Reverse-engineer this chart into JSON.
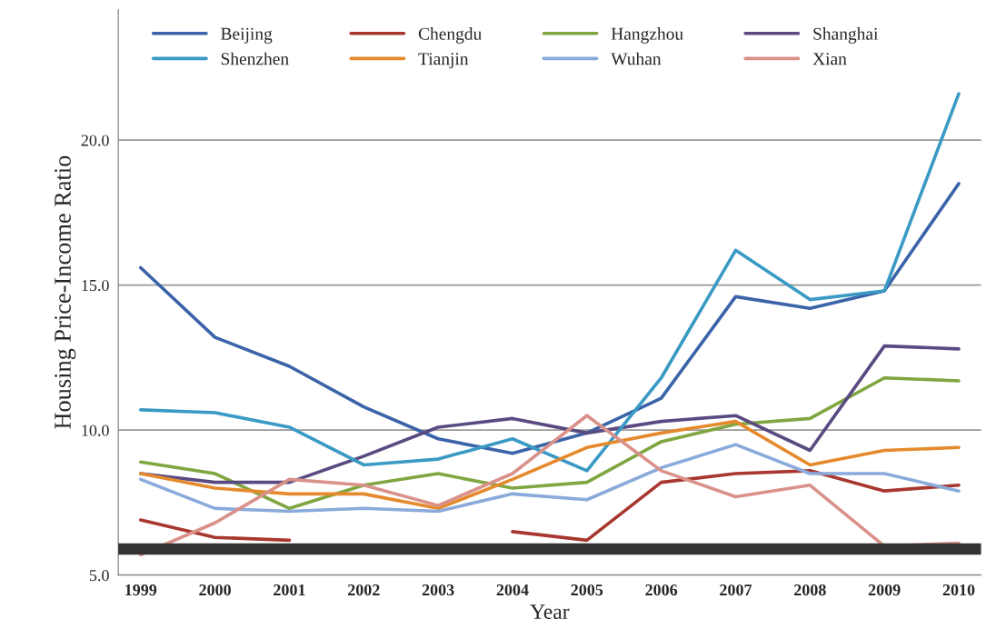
{
  "chart_data": {
    "type": "line",
    "xlabel": "Year",
    "ylabel": "Housing Price-Income Ratio",
    "categories": [
      "1999",
      "2000",
      "2001",
      "2002",
      "2003",
      "2004",
      "2005",
      "2006",
      "2007",
      "2008",
      "2009",
      "2010"
    ],
    "series": [
      {
        "name": "Beijing",
        "color": "#3a63a8",
        "values": [
          15.6,
          13.2,
          12.2,
          10.8,
          9.7,
          9.2,
          9.9,
          11.1,
          14.6,
          14.2,
          14.8,
          18.5
        ]
      },
      {
        "name": "Chengdu",
        "color": "#a8382f",
        "values": [
          6.9,
          6.3,
          6.2,
          null,
          null,
          6.5,
          6.2,
          8.2,
          8.5,
          8.6,
          7.9,
          8.1
        ]
      },
      {
        "name": "Hangzhou",
        "color": "#7fa641",
        "values": [
          8.9,
          8.5,
          7.3,
          8.1,
          8.5,
          8.0,
          8.2,
          9.6,
          10.2,
          10.4,
          11.8,
          11.7
        ]
      },
      {
        "name": "Shanghai",
        "color": "#5a4a82",
        "values": [
          8.5,
          8.2,
          8.2,
          9.1,
          10.1,
          10.4,
          9.9,
          10.3,
          10.5,
          9.3,
          12.9,
          12.8
        ]
      },
      {
        "name": "Shenzhen",
        "color": "#3a9ac4",
        "values": [
          10.7,
          10.6,
          10.1,
          8.8,
          9.0,
          9.7,
          8.6,
          11.8,
          16.2,
          14.5,
          14.8,
          21.6
        ]
      },
      {
        "name": "Tianjin",
        "color": "#e48a2c",
        "values": [
          8.5,
          8.0,
          7.8,
          7.8,
          7.3,
          8.3,
          9.4,
          9.9,
          10.3,
          8.8,
          9.3,
          9.4
        ]
      },
      {
        "name": "Wuhan",
        "color": "#8aaadb",
        "values": [
          8.3,
          7.3,
          7.2,
          7.3,
          7.2,
          7.8,
          7.6,
          8.7,
          9.5,
          8.5,
          8.5,
          7.9
        ]
      },
      {
        "name": "Xian",
        "color": "#d9918a",
        "values": [
          5.7,
          6.8,
          8.3,
          8.1,
          7.4,
          8.5,
          10.5,
          8.6,
          7.7,
          8.1,
          6.0,
          6.1
        ]
      }
    ],
    "ylim": [
      5,
      24.5
    ],
    "yticks": [
      {
        "value": 5,
        "label": "5.0"
      },
      {
        "value": 10,
        "label": "10.0"
      },
      {
        "value": 15,
        "label": "15.0"
      },
      {
        "value": 20,
        "label": "20.0"
      }
    ],
    "ref_lines": [
      {
        "axis": "y",
        "value": 5.9,
        "color": "#333333"
      }
    ],
    "grid": "y",
    "legend": "top",
    "marker": "none",
    "line_style": "solid"
  }
}
